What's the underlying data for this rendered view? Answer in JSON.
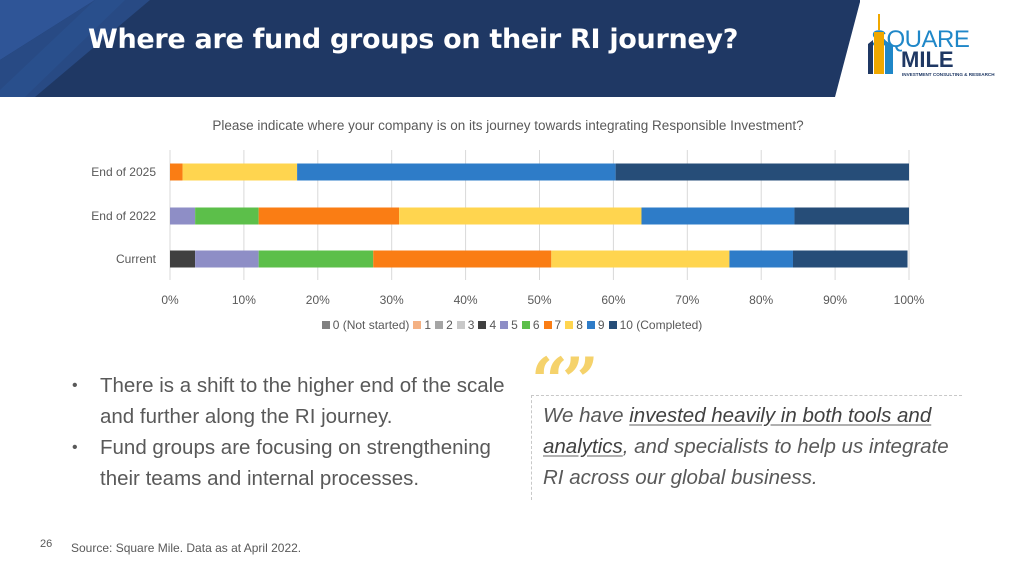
{
  "header": {
    "title": "Where are fund groups on their RI journey?",
    "logo": {
      "top": "SQUARE",
      "bottom": "MILE",
      "tagline": "INVESTMENT CONSULTING & RESEARCH"
    },
    "colors": {
      "banner_dark": "#1f3864",
      "banner_light": "#2f5597",
      "accent": "#1f87c8"
    }
  },
  "chart_data": {
    "type": "bar",
    "orientation": "horizontal-stacked-100",
    "title": "Please indicate where your company is on its journey towards integrating Responsible Investment?",
    "categories": [
      "End of 2025",
      "End of 2022",
      "Current"
    ],
    "x_ticks": [
      "0%",
      "10%",
      "20%",
      "30%",
      "40%",
      "50%",
      "60%",
      "70%",
      "80%",
      "90%",
      "100%"
    ],
    "xlim": [
      0,
      100
    ],
    "grid": true,
    "legend_position": "bottom",
    "series": [
      {
        "name": "0 (Not started)",
        "color": "#808080",
        "values": [
          0,
          0,
          0
        ]
      },
      {
        "name": "1",
        "color": "#f4b183",
        "values": [
          0,
          0,
          0
        ]
      },
      {
        "name": "2",
        "color": "#a5a5a5",
        "values": [
          0,
          0,
          0
        ]
      },
      {
        "name": "3",
        "color": "#c9c9c9",
        "values": [
          0,
          0,
          0
        ]
      },
      {
        "name": "4",
        "color": "#404040",
        "values": [
          0,
          0,
          3.4
        ]
      },
      {
        "name": "5",
        "color": "#8e8ec6",
        "values": [
          0,
          3.4,
          8.6
        ]
      },
      {
        "name": "6",
        "color": "#5cbf4a",
        "values": [
          0,
          8.6,
          15.5
        ]
      },
      {
        "name": "7",
        "color": "#fa7d14",
        "values": [
          1.7,
          19.0,
          24.1
        ]
      },
      {
        "name": "8",
        "color": "#ffd54f",
        "values": [
          15.5,
          32.8,
          24.1
        ]
      },
      {
        "name": "9",
        "color": "#2e7cc8",
        "values": [
          43.1,
          20.7,
          8.6
        ]
      },
      {
        "name": "10 (Completed)",
        "color": "#264d78",
        "values": [
          39.7,
          15.5,
          15.5
        ]
      }
    ]
  },
  "bullets": [
    "There is a shift to the higher end of the scale and further along the RI journey.",
    "Fund groups are focusing on strengthening their teams and internal processes."
  ],
  "quote": {
    "part1": "We have ",
    "highlight1": "invested heavily in both tools and analytics",
    "part2": ", and specialists to help us integrate RI across our global business."
  },
  "footer": {
    "page_number": "26",
    "source": "Source: Square Mile. Data as at April 2022."
  }
}
